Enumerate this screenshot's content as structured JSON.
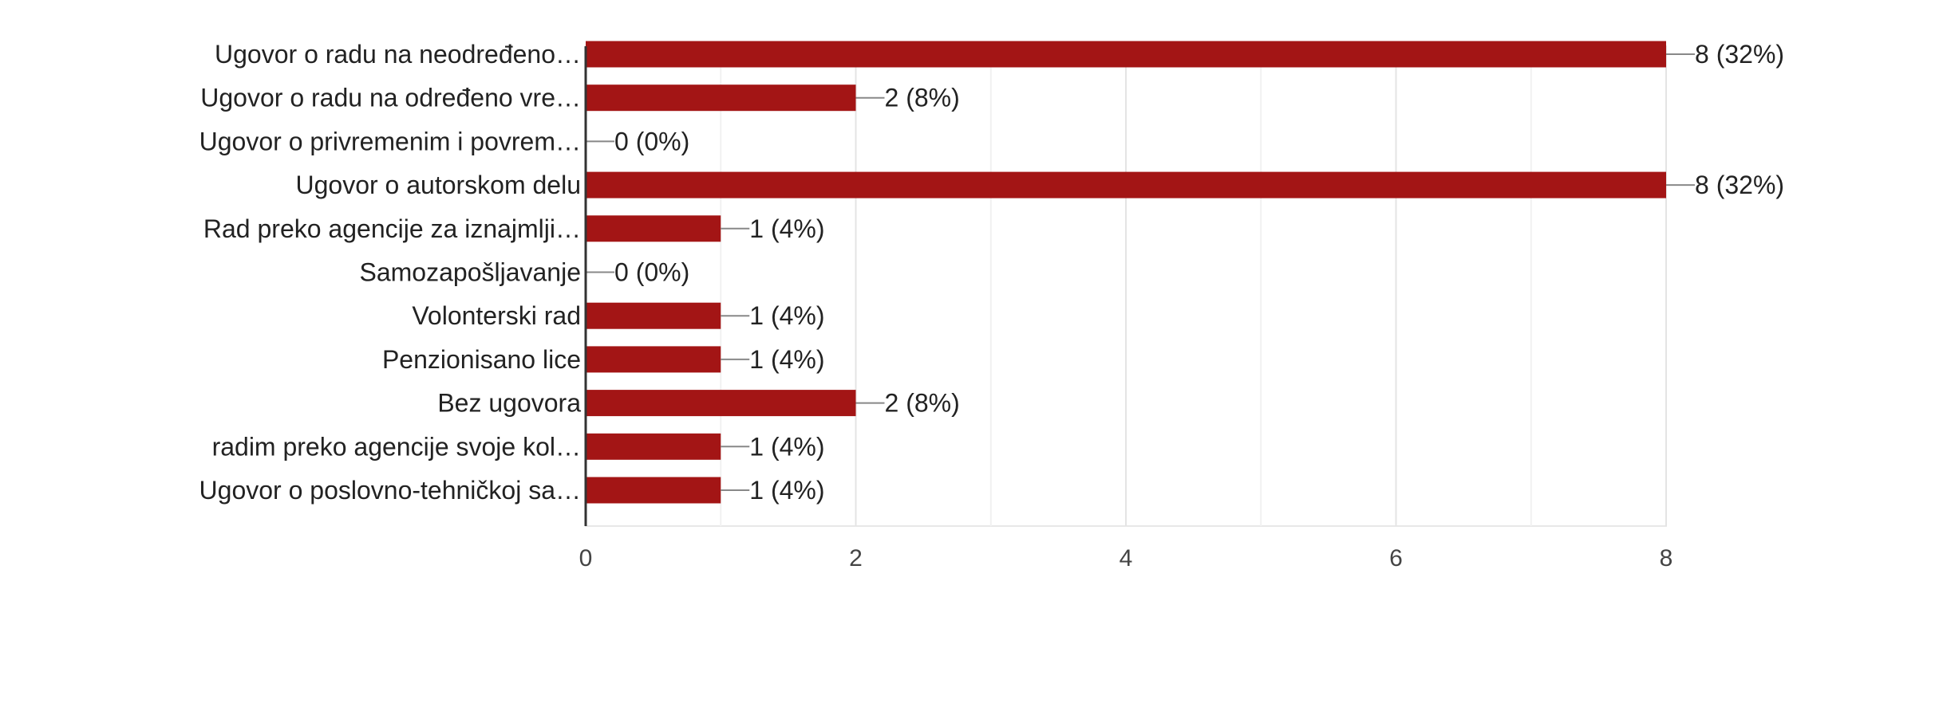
{
  "chart_data": {
    "type": "bar",
    "orientation": "horizontal",
    "categories": [
      "Ugovor o radu na neodređeno…",
      "Ugovor o radu na određeno vre…",
      "Ugovor o privremenim i povrem…",
      "Ugovor o autorskom delu",
      "Rad preko agencije za iznajmlji…",
      "Samozapošljavanje",
      "Volonterski rad",
      "Penzionisano lice",
      "Bez ugovora",
      "radim preko agencije svoje kol…",
      "Ugovor o poslovno-tehničkoj sa…"
    ],
    "values": [
      8,
      2,
      0,
      8,
      1,
      0,
      1,
      1,
      2,
      1,
      1
    ],
    "data_labels": [
      "8 (32%)",
      "2 (8%)",
      "0 (0%)",
      "8 (32%)",
      "1 (4%)",
      "0 (0%)",
      "1 (4%)",
      "1 (4%)",
      "2 (8%)",
      "1 (4%)",
      "1 (4%)"
    ],
    "xlim": [
      0,
      8
    ],
    "xticks": [
      0,
      2,
      4,
      6,
      8
    ],
    "xtick_labels": [
      "0",
      "2",
      "4",
      "6",
      "8"
    ],
    "grid": true,
    "bar_color": "#a31515",
    "title": "",
    "xlabel": "",
    "ylabel": ""
  }
}
